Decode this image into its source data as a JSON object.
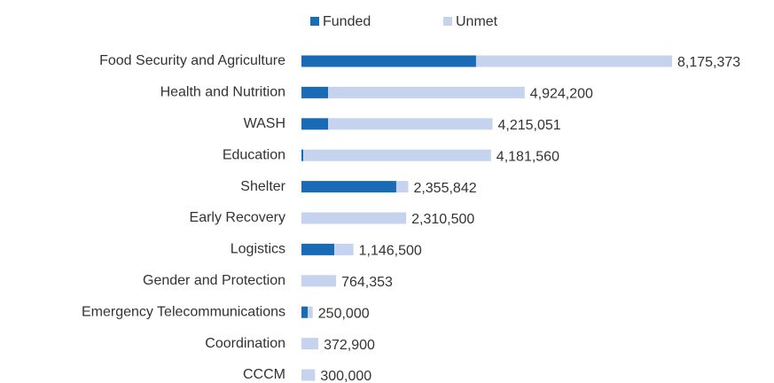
{
  "chart_data": {
    "type": "stacked-barh",
    "categories": [
      "Food Security and Agriculture",
      "Health and Nutrition",
      "WASH",
      "Education",
      "Shelter",
      "Early Recovery",
      "Logistics",
      "Gender and Protection",
      "Emergency Telecommunications",
      "Coordination",
      "CCCM"
    ],
    "series": [
      {
        "name": "Funded",
        "color": "#1a6bb5",
        "values": [
          3852000,
          587000,
          587000,
          40000,
          2092000,
          0,
          724000,
          0,
          137000,
          0,
          0
        ]
      },
      {
        "name": "Unmet",
        "color": "#c5d3ee",
        "values": [
          4323373,
          4337200,
          3628051,
          4141560,
          263842,
          2310500,
          422500,
          764353,
          113000,
          372900,
          300000
        ]
      }
    ],
    "totals": [
      8175373,
      4924200,
      4215051,
      4181560,
      2355842,
      2310500,
      1146500,
      764353,
      250000,
      372900,
      300000
    ],
    "total_labels": [
      "8,175,373",
      "4,924,200",
      "4,215,051",
      "4,181,560",
      "2,355,842",
      "2,310,500",
      "1,146,500",
      "764,353",
      "250,000",
      "372,900",
      "300,000"
    ],
    "legend": "top"
  }
}
